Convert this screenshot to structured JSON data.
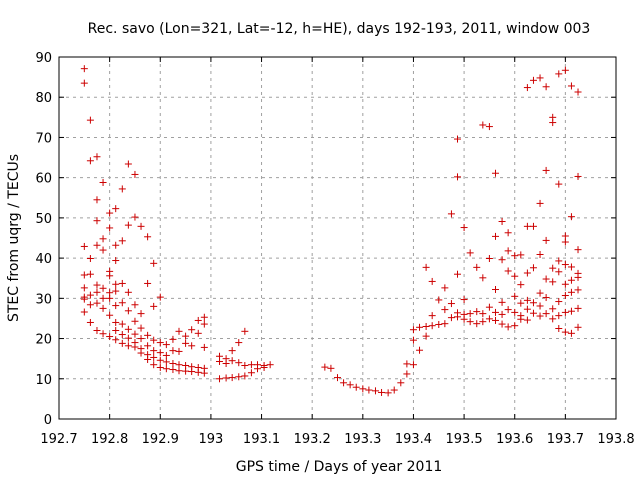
{
  "chart_data": {
    "type": "scatter",
    "title": "Rec. savo (Lon=321, Lat=-12, h=HE), days 192-193, 2011, window 003",
    "xlabel": "GPS time / Days of year 2011",
    "ylabel": "STEC from uqrg / TECUs",
    "xlim": [
      192.7,
      193.8
    ],
    "ylim": [
      0,
      90
    ],
    "xticks": [
      "192.7",
      "192.8",
      "192.9",
      "193",
      "193.1",
      "193.2",
      "193.3",
      "193.4",
      "193.5",
      "193.6",
      "193.7",
      "193.8"
    ],
    "yticks": [
      "0",
      "10",
      "20",
      "30",
      "40",
      "50",
      "60",
      "70",
      "80",
      "90"
    ],
    "grid": true,
    "marker": "+",
    "colors": {
      "points": "#cc0000",
      "grid": "#a0a0a0",
      "axes": "#000000"
    },
    "points": [
      [
        192.75,
        87.1
      ],
      [
        192.75,
        83.5
      ],
      [
        192.75,
        42.9
      ],
      [
        192.75,
        35.8
      ],
      [
        192.75,
        32.6
      ],
      [
        192.75,
        30.3
      ],
      [
        192.75,
        29.8
      ],
      [
        192.75,
        26.6
      ],
      [
        192.762,
        74.3
      ],
      [
        192.762,
        64.2
      ],
      [
        192.762,
        39.9
      ],
      [
        192.762,
        36.0
      ],
      [
        192.762,
        30.8
      ],
      [
        192.762,
        28.4
      ],
      [
        192.762,
        24.0
      ],
      [
        192.775,
        65.2
      ],
      [
        192.775,
        54.5
      ],
      [
        192.775,
        49.3
      ],
      [
        192.775,
        43.2
      ],
      [
        192.775,
        33.3
      ],
      [
        192.775,
        31.5
      ],
      [
        192.775,
        28.8
      ],
      [
        192.775,
        22.0
      ],
      [
        192.787,
        58.8
      ],
      [
        192.787,
        44.8
      ],
      [
        192.787,
        42.0
      ],
      [
        192.787,
        32.5
      ],
      [
        192.787,
        30.0
      ],
      [
        192.787,
        27.5
      ],
      [
        192.787,
        21.2
      ],
      [
        192.8,
        51.2
      ],
      [
        192.8,
        47.5
      ],
      [
        192.8,
        36.7
      ],
      [
        192.8,
        35.6
      ],
      [
        192.8,
        31.4
      ],
      [
        192.8,
        30.0
      ],
      [
        192.8,
        25.8
      ],
      [
        192.8,
        20.5
      ],
      [
        192.812,
        52.3
      ],
      [
        192.812,
        43.2
      ],
      [
        192.812,
        39.4
      ],
      [
        192.812,
        33.5
      ],
      [
        192.812,
        31.8
      ],
      [
        192.812,
        28.2
      ],
      [
        192.812,
        24.0
      ],
      [
        192.812,
        22.0
      ],
      [
        192.812,
        19.7
      ],
      [
        192.825,
        57.2
      ],
      [
        192.825,
        44.3
      ],
      [
        192.825,
        33.7
      ],
      [
        192.825,
        28.9
      ],
      [
        192.825,
        23.6
      ],
      [
        192.825,
        21.0
      ],
      [
        192.825,
        18.8
      ],
      [
        192.837,
        63.4
      ],
      [
        192.837,
        48.2
      ],
      [
        192.837,
        31.5
      ],
      [
        192.837,
        26.9
      ],
      [
        192.837,
        22.3
      ],
      [
        192.837,
        20.1
      ],
      [
        192.837,
        18.2
      ],
      [
        192.85,
        60.8
      ],
      [
        192.85,
        50.2
      ],
      [
        192.85,
        28.4
      ],
      [
        192.85,
        24.3
      ],
      [
        192.85,
        21.1
      ],
      [
        192.85,
        19.0
      ],
      [
        192.85,
        17.9
      ],
      [
        192.862,
        47.9
      ],
      [
        192.862,
        26.2
      ],
      [
        192.862,
        22.6
      ],
      [
        192.862,
        20.0
      ],
      [
        192.862,
        17.5
      ],
      [
        192.862,
        16.4
      ],
      [
        192.875,
        45.3
      ],
      [
        192.875,
        33.7
      ],
      [
        192.875,
        20.8
      ],
      [
        192.875,
        18.2
      ],
      [
        192.875,
        16.0
      ],
      [
        192.875,
        14.8
      ],
      [
        192.887,
        38.7
      ],
      [
        192.887,
        28.0
      ],
      [
        192.887,
        19.6
      ],
      [
        192.887,
        17.0
      ],
      [
        192.887,
        15.3
      ],
      [
        192.887,
        13.5
      ],
      [
        192.9,
        30.3
      ],
      [
        192.9,
        19.0
      ],
      [
        192.9,
        16.5
      ],
      [
        192.9,
        14.6
      ],
      [
        192.9,
        12.8
      ],
      [
        192.912,
        18.5
      ],
      [
        192.912,
        15.8
      ],
      [
        192.912,
        14.2
      ],
      [
        192.912,
        12.5
      ],
      [
        192.925,
        19.8
      ],
      [
        192.925,
        17.0
      ],
      [
        192.925,
        13.8
      ],
      [
        192.925,
        12.3
      ],
      [
        192.937,
        21.8
      ],
      [
        192.937,
        16.8
      ],
      [
        192.937,
        13.5
      ],
      [
        192.937,
        12.0
      ],
      [
        192.95,
        20.6
      ],
      [
        192.95,
        18.8
      ],
      [
        192.95,
        13.3
      ],
      [
        192.95,
        11.9
      ],
      [
        192.962,
        22.2
      ],
      [
        192.962,
        18.2
      ],
      [
        192.962,
        13.0
      ],
      [
        192.962,
        11.8
      ],
      [
        192.975,
        24.5
      ],
      [
        192.975,
        21.3
      ],
      [
        192.975,
        12.8
      ],
      [
        192.975,
        11.6
      ],
      [
        192.987,
        25.3
      ],
      [
        192.987,
        23.6
      ],
      [
        192.987,
        17.8
      ],
      [
        192.987,
        12.6
      ],
      [
        192.987,
        11.4
      ],
      [
        193.017,
        15.6
      ],
      [
        193.017,
        14.3
      ],
      [
        193.017,
        10.0
      ],
      [
        193.03,
        15.0
      ],
      [
        193.03,
        13.8
      ],
      [
        193.03,
        10.2
      ],
      [
        193.042,
        17.0
      ],
      [
        193.042,
        14.5
      ],
      [
        193.042,
        10.3
      ],
      [
        193.055,
        19.0
      ],
      [
        193.055,
        14.0
      ],
      [
        193.055,
        10.5
      ],
      [
        193.067,
        21.8
      ],
      [
        193.067,
        13.3
      ],
      [
        193.067,
        10.7
      ],
      [
        193.08,
        13.5
      ],
      [
        193.08,
        11.5
      ],
      [
        193.092,
        13.5
      ],
      [
        193.092,
        12.5
      ],
      [
        193.105,
        13.3
      ],
      [
        193.105,
        12.8
      ],
      [
        193.117,
        13.5
      ],
      [
        193.225,
        12.9
      ],
      [
        193.237,
        12.6
      ],
      [
        193.25,
        10.3
      ],
      [
        193.262,
        9.0
      ],
      [
        193.275,
        8.5
      ],
      [
        193.287,
        7.9
      ],
      [
        193.3,
        7.5
      ],
      [
        193.312,
        7.2
      ],
      [
        193.325,
        7.0
      ],
      [
        193.337,
        6.6
      ],
      [
        193.35,
        6.5
      ],
      [
        193.362,
        7.2
      ],
      [
        193.375,
        9.0
      ],
      [
        193.387,
        11.2
      ],
      [
        193.387,
        13.7
      ],
      [
        193.4,
        13.5
      ],
      [
        193.4,
        22.2
      ],
      [
        193.4,
        19.6
      ],
      [
        193.412,
        17.1
      ],
      [
        193.412,
        22.8
      ],
      [
        193.425,
        20.6
      ],
      [
        193.425,
        23.0
      ],
      [
        193.425,
        37.7
      ],
      [
        193.437,
        23.2
      ],
      [
        193.437,
        25.7
      ],
      [
        193.437,
        34.2
      ],
      [
        193.45,
        23.5
      ],
      [
        193.45,
        29.6
      ],
      [
        193.462,
        23.7
      ],
      [
        193.462,
        27.2
      ],
      [
        193.462,
        32.6
      ],
      [
        193.475,
        51.0
      ],
      [
        193.475,
        25.2
      ],
      [
        193.475,
        28.7
      ],
      [
        193.487,
        69.6
      ],
      [
        193.487,
        60.2
      ],
      [
        193.487,
        36.0
      ],
      [
        193.487,
        26.4
      ],
      [
        193.487,
        25.4
      ],
      [
        193.5,
        47.6
      ],
      [
        193.5,
        29.7
      ],
      [
        193.5,
        26.0
      ],
      [
        193.5,
        24.8
      ],
      [
        193.512,
        41.3
      ],
      [
        193.512,
        26.2
      ],
      [
        193.512,
        24.2
      ],
      [
        193.525,
        37.7
      ],
      [
        193.525,
        26.7
      ],
      [
        193.525,
        23.7
      ],
      [
        193.537,
        73.1
      ],
      [
        193.537,
        35.1
      ],
      [
        193.537,
        26.2
      ],
      [
        193.537,
        24.2
      ],
      [
        193.55,
        72.7
      ],
      [
        193.55,
        39.9
      ],
      [
        193.55,
        27.8
      ],
      [
        193.55,
        24.9
      ],
      [
        193.562,
        61.1
      ],
      [
        193.562,
        45.4
      ],
      [
        193.562,
        32.2
      ],
      [
        193.562,
        26.5
      ],
      [
        193.562,
        24.5
      ],
      [
        193.575,
        49.1
      ],
      [
        193.575,
        39.6
      ],
      [
        193.575,
        29.0
      ],
      [
        193.575,
        26.0
      ],
      [
        193.575,
        23.6
      ],
      [
        193.587,
        46.3
      ],
      [
        193.587,
        41.8
      ],
      [
        193.587,
        36.8
      ],
      [
        193.587,
        27.2
      ],
      [
        193.587,
        22.9
      ],
      [
        193.6,
        40.6
      ],
      [
        193.6,
        35.5
      ],
      [
        193.6,
        30.5
      ],
      [
        193.6,
        26.5
      ],
      [
        193.6,
        23.2
      ],
      [
        193.612,
        40.8
      ],
      [
        193.612,
        33.4
      ],
      [
        193.612,
        28.8
      ],
      [
        193.612,
        25.7
      ],
      [
        193.612,
        24.8
      ],
      [
        193.625,
        82.4
      ],
      [
        193.625,
        47.9
      ],
      [
        193.625,
        36.3
      ],
      [
        193.625,
        29.5
      ],
      [
        193.625,
        27.3
      ],
      [
        193.625,
        24.6
      ],
      [
        193.637,
        84.2
      ],
      [
        193.637,
        47.9
      ],
      [
        193.637,
        37.6
      ],
      [
        193.637,
        28.9
      ],
      [
        193.637,
        26.3
      ],
      [
        193.65,
        84.8
      ],
      [
        193.65,
        53.6
      ],
      [
        193.65,
        40.9
      ],
      [
        193.65,
        31.3
      ],
      [
        193.65,
        28.1
      ],
      [
        193.65,
        25.6
      ],
      [
        193.662,
        82.6
      ],
      [
        193.662,
        61.8
      ],
      [
        193.662,
        44.4
      ],
      [
        193.662,
        34.8
      ],
      [
        193.662,
        30.2
      ],
      [
        193.662,
        26.2
      ],
      [
        193.675,
        75.0
      ],
      [
        193.675,
        73.7
      ],
      [
        193.675,
        37.5
      ],
      [
        193.675,
        34.1
      ],
      [
        193.675,
        27.4
      ],
      [
        193.675,
        24.9
      ],
      [
        193.687,
        85.8
      ],
      [
        193.687,
        58.4
      ],
      [
        193.687,
        39.3
      ],
      [
        193.687,
        36.6
      ],
      [
        193.687,
        29.2
      ],
      [
        193.687,
        25.7
      ],
      [
        193.687,
        22.5
      ],
      [
        193.7,
        86.7
      ],
      [
        193.7,
        45.5
      ],
      [
        193.7,
        44.0
      ],
      [
        193.7,
        38.4
      ],
      [
        193.7,
        33.5
      ],
      [
        193.7,
        30.7
      ],
      [
        193.7,
        26.5
      ],
      [
        193.7,
        21.6
      ],
      [
        193.712,
        82.8
      ],
      [
        193.712,
        50.3
      ],
      [
        193.712,
        37.8
      ],
      [
        193.712,
        34.5
      ],
      [
        193.712,
        31.5
      ],
      [
        193.712,
        26.8
      ],
      [
        193.712,
        21.3
      ],
      [
        193.725,
        81.3
      ],
      [
        193.725,
        60.3
      ],
      [
        193.725,
        42.1
      ],
      [
        193.725,
        36.2
      ],
      [
        193.725,
        35.2
      ],
      [
        193.725,
        32.1
      ],
      [
        193.725,
        27.5
      ],
      [
        193.725,
        22.8
      ]
    ]
  }
}
